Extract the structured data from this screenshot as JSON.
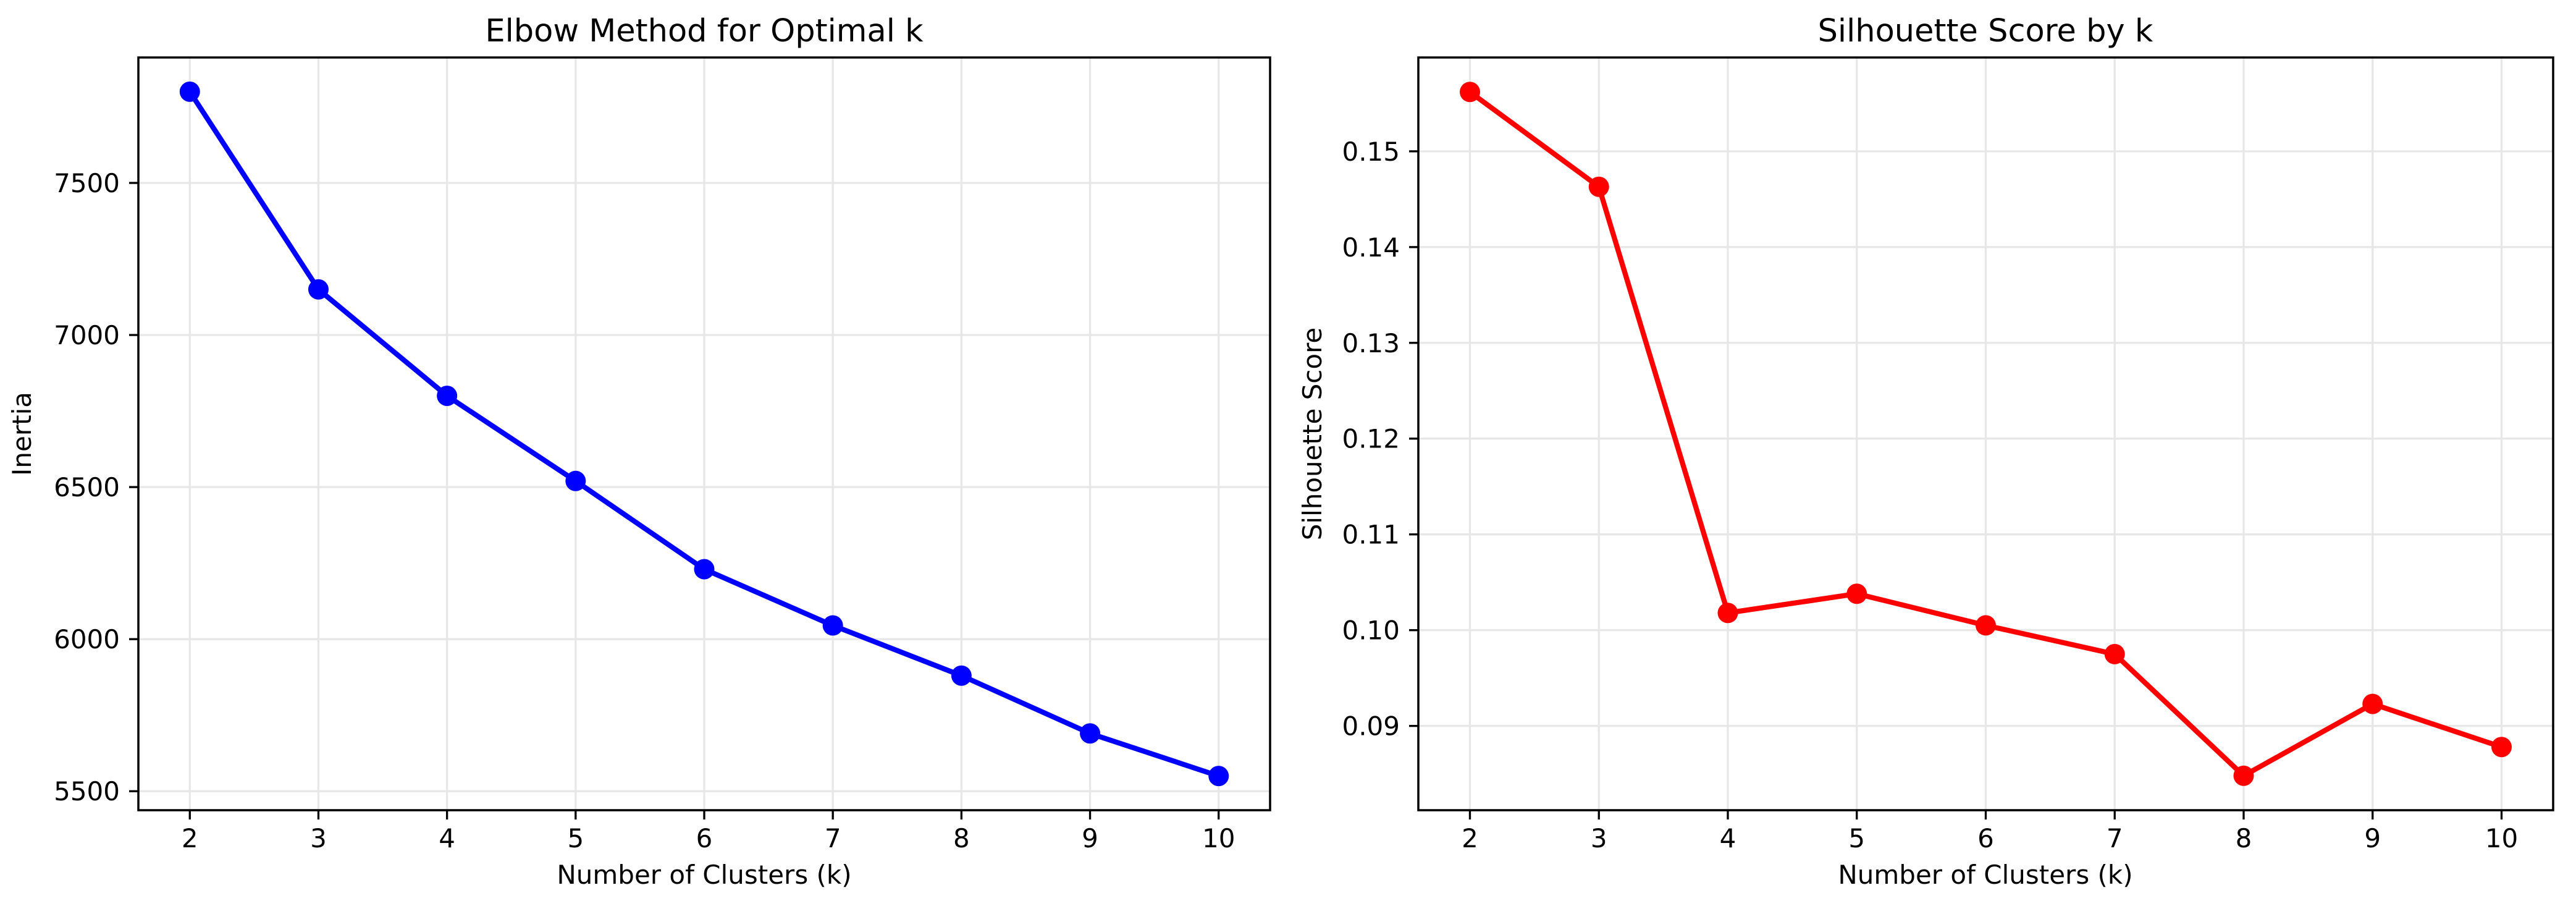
{
  "figure": {
    "background": "#ffffff",
    "description": "Two side-by-side line charts for k-means cluster evaluation"
  },
  "chart_data": [
    {
      "type": "line",
      "title": "Elbow Method for Optimal k",
      "xlabel": "Number of Clusters (k)",
      "ylabel": "Inertia",
      "line_color": "#0000ff",
      "marker": "o",
      "x": [
        2,
        3,
        4,
        5,
        6,
        7,
        8,
        9,
        10
      ],
      "values": [
        7800,
        7150,
        6800,
        6520,
        6230,
        6045,
        5880,
        5690,
        5550
      ],
      "x_tick_labels": [
        "2",
        "3",
        "4",
        "5",
        "6",
        "7",
        "8",
        "9",
        "10"
      ],
      "y_tick_values": [
        5500,
        6000,
        6500,
        7000,
        7500
      ],
      "y_tick_labels": [
        "5500",
        "6000",
        "6500",
        "7000",
        "7500"
      ],
      "xlim": [
        1.6,
        10.4
      ],
      "ylim": [
        5437.5,
        7912.5
      ],
      "grid": true,
      "legend": "none"
    },
    {
      "type": "line",
      "title": "Silhouette Score by k",
      "xlabel": "Number of Clusters (k)",
      "ylabel": "Silhouette Score",
      "line_color": "#ff0000",
      "marker": "o",
      "x": [
        2,
        3,
        4,
        5,
        6,
        7,
        8,
        9,
        10
      ],
      "values": [
        0.1562,
        0.1463,
        0.1018,
        0.1038,
        0.1005,
        0.0975,
        0.0848,
        0.0923,
        0.0878
      ],
      "x_tick_labels": [
        "2",
        "3",
        "4",
        "5",
        "6",
        "7",
        "8",
        "9",
        "10"
      ],
      "y_tick_values": [
        0.09,
        0.1,
        0.11,
        0.12,
        0.13,
        0.14,
        0.15
      ],
      "y_tick_labels": [
        "0.09",
        "0.10",
        "0.11",
        "0.12",
        "0.13",
        "0.14",
        "0.15"
      ],
      "xlim": [
        1.6,
        10.4
      ],
      "ylim": [
        0.0812,
        0.1598
      ],
      "grid": true,
      "legend": "none"
    }
  ]
}
